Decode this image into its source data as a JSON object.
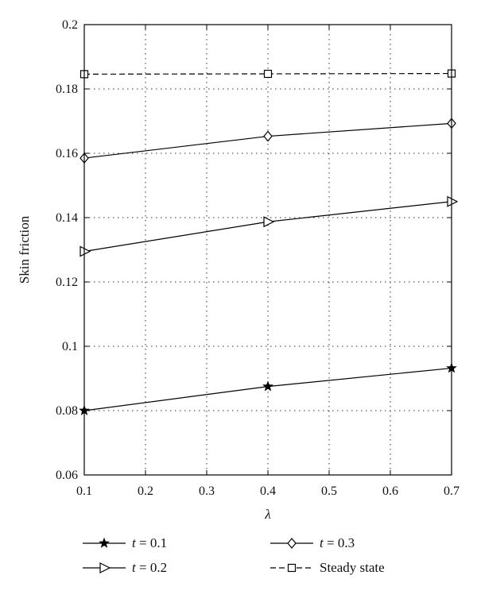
{
  "chart_data": {
    "type": "line",
    "title": "",
    "xlabel": "λ",
    "ylabel": "Skin friction",
    "x": [
      0.1,
      0.4,
      0.7
    ],
    "xlim": [
      0.1,
      0.7
    ],
    "ylim": [
      0.06,
      0.2
    ],
    "xticks": [
      0.1,
      0.2,
      0.3,
      0.4,
      0.5,
      0.6,
      0.7
    ],
    "yticks": [
      0.06,
      0.08,
      0.1,
      0.12,
      0.14,
      0.16,
      0.18,
      0.2
    ],
    "xtick_labels": [
      "0.1",
      "0.2",
      "0.3",
      "0.4",
      "0.5",
      "0.6",
      "0.7"
    ],
    "ytick_labels": [
      "0.06",
      "0.08",
      "0.1",
      "0.12",
      "0.14",
      "0.16",
      "0.18",
      "0.2"
    ],
    "grid": true,
    "legend_position": "bottom",
    "series": [
      {
        "name": "t = 0.1",
        "values": [
          0.08,
          0.0875,
          0.0932
        ],
        "marker": "star",
        "line": "solid"
      },
      {
        "name": "t = 0.2",
        "values": [
          0.1295,
          0.1387,
          0.145
        ],
        "marker": "triangle-right",
        "line": "solid"
      },
      {
        "name": "t = 0.3",
        "values": [
          0.1585,
          0.1653,
          0.1693
        ],
        "marker": "diamond",
        "line": "solid"
      },
      {
        "name": "Steady state",
        "values": [
          0.1846,
          0.1847,
          0.1848
        ],
        "marker": "square",
        "line": "dashed"
      }
    ]
  },
  "legend": {
    "t1_var": "t",
    "t1_eq": " = 0.1",
    "t2_var": "t",
    "t2_eq": " = 0.2",
    "t3_var": "t",
    "t3_eq": " = 0.3",
    "steady_label": "Steady state"
  }
}
